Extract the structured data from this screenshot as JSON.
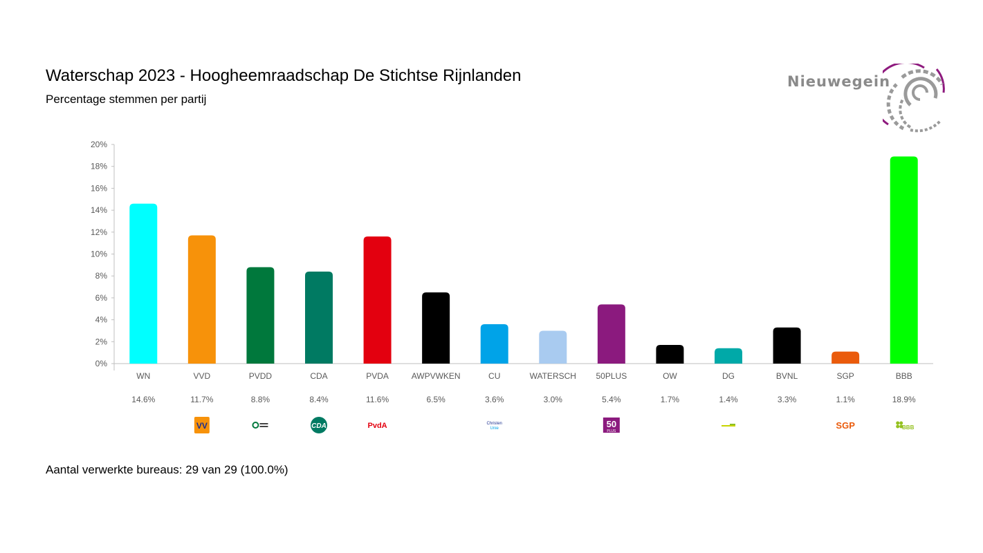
{
  "header": {
    "title": "Waterschap 2023 - Hoogheemraadschap De Stichtse Rijnlanden",
    "subtitle": "Percentage stemmen per partij"
  },
  "brand": {
    "name": "Nieuwegein",
    "logo_icon": "nieuwegein-spiral-logo",
    "colors": {
      "text": "#8a8a8a",
      "accent": "#8e1a7e"
    }
  },
  "footer": {
    "text": "Aantal verwerkte bureaus: 29 van 29 (100.0%)"
  },
  "chart_data": {
    "type": "bar",
    "ylim": [
      0,
      20
    ],
    "yticks": [
      "0%",
      "2%",
      "4%",
      "6%",
      "8%",
      "10%",
      "12%",
      "14%",
      "16%",
      "18%",
      "20%"
    ],
    "grid": false,
    "categories": [
      "WN",
      "VVD",
      "PVDD",
      "CDA",
      "PVDA",
      "AWPVWKEN",
      "CU",
      "WATERSCH",
      "50PLUS",
      "OW",
      "DG",
      "BVNL",
      "SGP",
      "BBB"
    ],
    "values": [
      14.6,
      11.7,
      8.8,
      8.4,
      11.6,
      6.5,
      3.6,
      3.0,
      5.4,
      1.7,
      1.4,
      3.3,
      1.1,
      18.9
    ],
    "value_labels": [
      "14.6%",
      "11.7%",
      "8.8%",
      "8.4%",
      "11.6%",
      "6.5%",
      "3.6%",
      "3.0%",
      "5.4%",
      "1.7%",
      "1.4%",
      "3.3%",
      "1.1%",
      "18.9%"
    ],
    "colors": [
      "#00ffff",
      "#f7920a",
      "#00783c",
      "#007a62",
      "#e3000f",
      "#000000",
      "#00a3e8",
      "#a9cbf0",
      "#8b1a7e",
      "#000000",
      "#00a9a8",
      "#000000",
      "#ea5b0c",
      "#00ff00"
    ],
    "party_logos": [
      null,
      {
        "type": "vvd",
        "text": "VVD"
      },
      {
        "type": "pvdd",
        "text": "Partij voor de Dieren"
      },
      {
        "type": "cda",
        "text": "CDA"
      },
      {
        "type": "pvda",
        "text": "PvdA"
      },
      null,
      {
        "type": "cu",
        "text": "Christen Unie"
      },
      null,
      {
        "type": "50plus",
        "text": "50 PLUS"
      },
      null,
      {
        "type": "dg",
        "text": ""
      },
      null,
      {
        "type": "sgp",
        "text": "SGP"
      },
      {
        "type": "bbb",
        "text": "BBB"
      }
    ]
  }
}
